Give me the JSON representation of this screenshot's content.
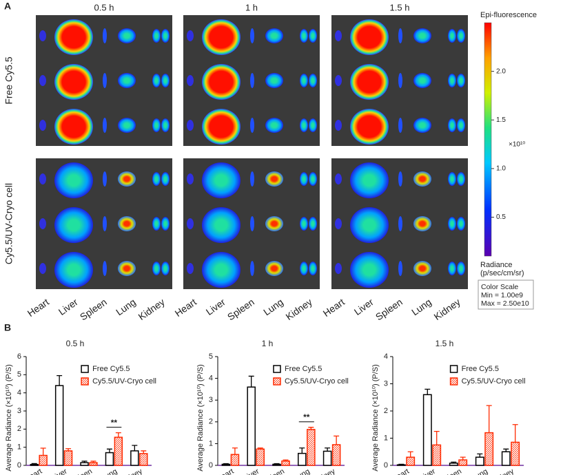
{
  "panel_a": {
    "letter": "A",
    "columns": [
      "0.5 h",
      "1 h",
      "1.5 h"
    ],
    "rows": [
      "Free Cy5.5",
      "Cy5.5/UV-Cryo cell"
    ],
    "organ_labels": [
      "Heart",
      "Liver",
      "Spleen",
      "Lung",
      "Kidney"
    ],
    "colorbar": {
      "title": "Epi-fluorescence",
      "lim": [
        0.1,
        2.5
      ],
      "ticks": [
        0.5,
        {
          "value": 1,
          "label": "1.0"
        },
        1.5,
        {
          "value": 2,
          "label": "2.0"
        }
      ],
      "multiplier": "×10¹⁰",
      "unit_lines": [
        "Radiance",
        "(p/sec/cm/sr)"
      ],
      "scale_box": [
        "Color Scale",
        "Min = 1.00e9",
        "Max = 2.50e10"
      ]
    }
  },
  "panel_b": {
    "letter": "B"
  },
  "chart_data": [
    {
      "type": "bar",
      "title": "0.5 h",
      "y_label": "Average Radiance (×10¹⁰) (P/S)",
      "categories": [
        "Heart",
        "Liver",
        "Spleen",
        "Lung",
        "Kidney"
      ],
      "ylim": [
        0,
        6
      ],
      "yticks": [
        0,
        1,
        2,
        3,
        4,
        5,
        6
      ],
      "legend": "upper right",
      "series": [
        {
          "name": "Free Cy5.5",
          "color": "#000000",
          "values": [
            0.05,
            4.4,
            0.15,
            0.7,
            0.8
          ],
          "errors": [
            0.05,
            0.55,
            0.08,
            0.2,
            0.3
          ]
        },
        {
          "name": "Cy5.5/UV-Cryo cell",
          "color": "#ff2a00",
          "values": [
            0.55,
            0.8,
            0.15,
            1.55,
            0.65
          ],
          "errors": [
            0.4,
            0.12,
            0.08,
            0.25,
            0.15
          ]
        }
      ],
      "annotations": [
        {
          "text": "**",
          "category": "Lung"
        }
      ]
    },
    {
      "type": "bar",
      "title": "1 h",
      "y_label": "Average Radiance (×10¹⁰) (P/S)",
      "categories": [
        "Heart",
        "Liver",
        "Spleen",
        "Lung",
        "Kidney"
      ],
      "ylim": [
        0,
        5
      ],
      "yticks": [
        0,
        1,
        2,
        3,
        4,
        5
      ],
      "legend": "upper right",
      "series": [
        {
          "name": "Free Cy5.5",
          "color": "#000000",
          "values": [
            0.05,
            3.6,
            0.05,
            0.55,
            0.65
          ],
          "errors": [
            0.03,
            0.5,
            0.03,
            0.25,
            0.15
          ]
        },
        {
          "name": "Cy5.5/UV-Cryo cell",
          "color": "#ff2a00",
          "values": [
            0.5,
            0.75,
            0.2,
            1.65,
            0.95
          ],
          "errors": [
            0.3,
            0.05,
            0.05,
            0.1,
            0.4
          ]
        }
      ],
      "annotations": [
        {
          "text": "**",
          "category": "Lung"
        }
      ]
    },
    {
      "type": "bar",
      "title": "1.5 h",
      "y_label": "Average Radiance (×10¹⁰) (P/S)",
      "categories": [
        "Heart",
        "Liver",
        "Spleen",
        "Lung",
        "Kidney"
      ],
      "ylim": [
        0,
        4
      ],
      "yticks": [
        0,
        1,
        2,
        3,
        4
      ],
      "legend": "upper right",
      "series": [
        {
          "name": "Free Cy5.5",
          "color": "#000000",
          "values": [
            0.02,
            2.6,
            0.08,
            0.3,
            0.5
          ],
          "errors": [
            0.02,
            0.2,
            0.04,
            0.12,
            0.1
          ]
        },
        {
          "name": "Cy5.5/UV-Cryo cell",
          "color": "#ff2a00",
          "values": [
            0.3,
            0.75,
            0.2,
            1.2,
            0.85
          ],
          "errors": [
            0.2,
            0.5,
            0.1,
            1.0,
            0.65
          ]
        }
      ]
    }
  ]
}
